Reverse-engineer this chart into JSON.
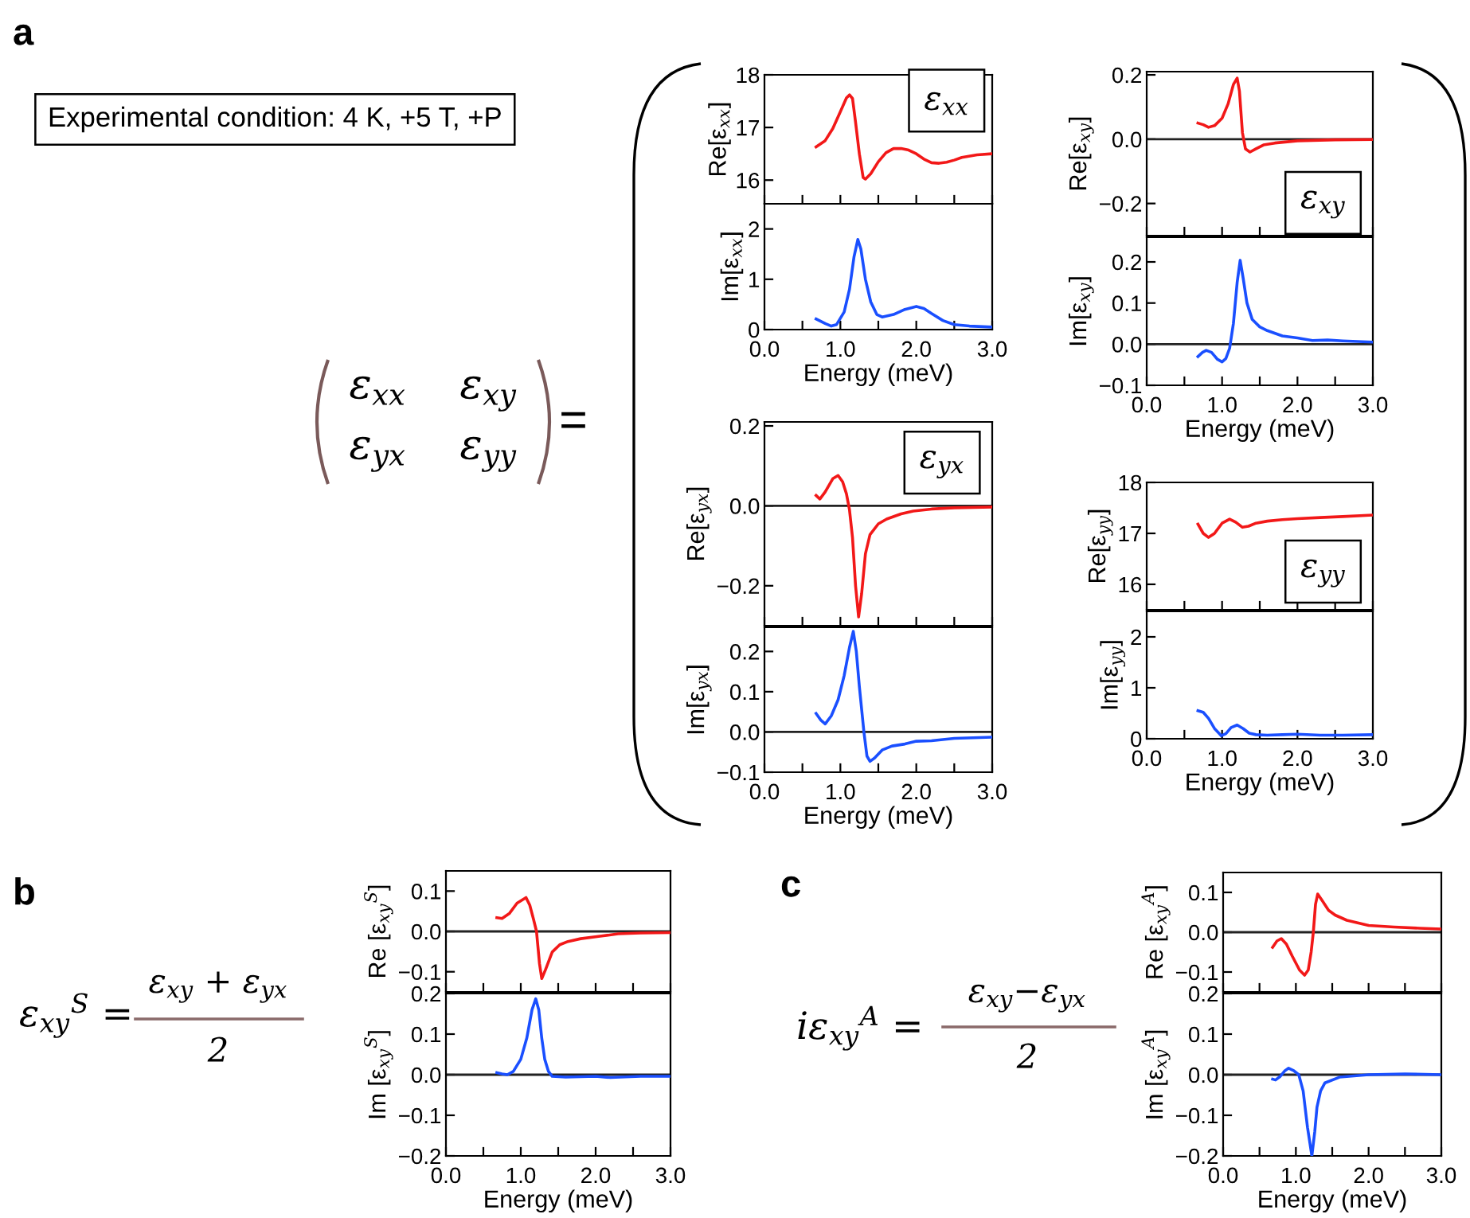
{
  "chart_data": [
    {
      "type": "line",
      "ylabel": "Re[ε$_{xx}$]",
      "xlim": [
        0,
        3
      ],
      "ylim": [
        15.55,
        18
      ],
      "yticks": [
        16,
        17,
        18
      ],
      "tick_labels": "y",
      "xticks": [
        {
          "value": 0,
          "label": null
        },
        {
          "value": 0.5,
          "label": null
        },
        {
          "value": 1,
          "label": null
        },
        {
          "value": 1.5,
          "label": null
        },
        {
          "value": 2,
          "label": null
        },
        {
          "value": 2.5,
          "label": null
        },
        {
          "value": 3,
          "label": null
        }
      ],
      "annotations": [
        "a",
        "Experimental condition: 4 K, +5 T, +P",
        "ε$_{xx}$    ε$_{xy}$",
        "ε$_{yx}$    ε$_{yy}$",
        "=",
        "ε$_{xx}$"
      ],
      "series": [
        {
          "color": "#f21818",
          "x": [
            0.68,
            0.8,
            0.9,
            1.0,
            1.08,
            1.12,
            1.16,
            1.2,
            1.25,
            1.3,
            1.33,
            1.4,
            1.5,
            1.6,
            1.7,
            1.8,
            1.9,
            2.0,
            2.1,
            2.2,
            2.3,
            2.4,
            2.5,
            2.6,
            2.8,
            3.0
          ],
          "values": [
            16.63,
            16.75,
            16.98,
            17.3,
            17.56,
            17.62,
            17.55,
            17.1,
            16.5,
            16.05,
            16.02,
            16.12,
            16.35,
            16.52,
            16.6,
            16.6,
            16.57,
            16.5,
            16.4,
            16.33,
            16.32,
            16.34,
            16.38,
            16.43,
            16.48,
            16.5
          ]
        }
      ]
    },
    {
      "type": "line",
      "ylabel": "Im[ε$_{xx}$]",
      "xlabel": "Energy (meV)",
      "xlim": [
        0,
        3
      ],
      "ylim": [
        0,
        2.5
      ],
      "yticks": [
        0,
        1,
        2
      ],
      "xticks": [
        {
          "value": 0,
          "label": "0.0"
        },
        {
          "value": 0.5,
          "label": null
        },
        {
          "value": 1,
          "label": "1.0"
        },
        {
          "value": 1.5,
          "label": null
        },
        {
          "value": 2,
          "label": "2.0"
        },
        {
          "value": 2.5,
          "label": null
        },
        {
          "value": 3,
          "label": "3.0"
        }
      ],
      "series": [
        {
          "color": "#1a4fff",
          "x": [
            0.68,
            0.8,
            0.88,
            0.95,
            1.05,
            1.12,
            1.18,
            1.23,
            1.27,
            1.33,
            1.4,
            1.48,
            1.55,
            1.7,
            1.85,
            2.0,
            2.1,
            2.2,
            2.35,
            2.5,
            2.7,
            3.0
          ],
          "values": [
            0.21,
            0.12,
            0.07,
            0.1,
            0.35,
            0.8,
            1.45,
            1.79,
            1.6,
            1.0,
            0.55,
            0.3,
            0.25,
            0.3,
            0.4,
            0.46,
            0.42,
            0.32,
            0.18,
            0.1,
            0.07,
            0.05
          ]
        }
      ]
    },
    {
      "type": "line",
      "ylabel": "Re[ε$_{xy}$]",
      "xlim": [
        0,
        3
      ],
      "ylim": [
        -0.3,
        0.21
      ],
      "yticks": [
        {
          "value": -0.2,
          "label": "−0.2"
        },
        {
          "value": 0,
          "label": "0.0"
        },
        0.2
      ],
      "tick_labels": "y",
      "xticks": [
        {
          "value": 0,
          "label": null
        },
        {
          "value": 0.5,
          "label": null
        },
        {
          "value": 1,
          "label": null
        },
        {
          "value": 1.5,
          "label": null
        },
        {
          "value": 2,
          "label": null
        },
        {
          "value": 2.5,
          "label": null
        },
        {
          "value": 3,
          "label": null
        }
      ],
      "ref_lines": [
        {
          "axis": "y",
          "value": 0
        }
      ],
      "annotations": [
        "ε$_{xy}$"
      ],
      "series": [
        {
          "color": "#f21818",
          "x": [
            0.68,
            0.75,
            0.82,
            0.9,
            1.0,
            1.08,
            1.15,
            1.2,
            1.23,
            1.27,
            1.31,
            1.37,
            1.45,
            1.55,
            1.7,
            2.0,
            2.5,
            3.0
          ],
          "values": [
            0.05,
            0.045,
            0.037,
            0.042,
            0.065,
            0.11,
            0.17,
            0.19,
            0.15,
            0.02,
            -0.03,
            -0.04,
            -0.03,
            -0.018,
            -0.012,
            -0.005,
            -0.002,
            -0.001
          ]
        }
      ]
    },
    {
      "type": "line",
      "ylabel": "Im[ε$_{xy}$]",
      "xlabel": "Energy (meV)",
      "xlim": [
        0,
        3
      ],
      "ylim": [
        -0.1,
        0.26
      ],
      "yticks": [
        {
          "value": -0.1,
          "label": "−0.1"
        },
        {
          "value": 0,
          "label": "0.0"
        },
        0.1,
        0.2
      ],
      "xticks": [
        {
          "value": 0,
          "label": "0.0"
        },
        {
          "value": 0.5,
          "label": null
        },
        {
          "value": 1,
          "label": "1.0"
        },
        {
          "value": 1.5,
          "label": null
        },
        {
          "value": 2,
          "label": "2.0"
        },
        {
          "value": 2.5,
          "label": null
        },
        {
          "value": 3,
          "label": "3.0"
        }
      ],
      "ref_lines": [
        {
          "axis": "y",
          "value": 0
        }
      ],
      "series": [
        {
          "color": "#1a4fff",
          "x": [
            0.68,
            0.74,
            0.79,
            0.86,
            0.94,
            1.0,
            1.05,
            1.1,
            1.15,
            1.2,
            1.24,
            1.28,
            1.33,
            1.4,
            1.5,
            1.6,
            1.8,
            2.0,
            2.2,
            2.4,
            2.6,
            3.0
          ],
          "values": [
            -0.03,
            -0.02,
            -0.015,
            -0.02,
            -0.037,
            -0.043,
            -0.035,
            -0.01,
            0.05,
            0.15,
            0.204,
            0.16,
            0.1,
            0.06,
            0.042,
            0.033,
            0.02,
            0.015,
            0.009,
            0.01,
            0.008,
            0.005
          ]
        }
      ]
    },
    {
      "type": "line",
      "ylabel": "Re[ε$_{yx}$]",
      "xlim": [
        0,
        3
      ],
      "ylim": [
        -0.3,
        0.21
      ],
      "yticks": [
        {
          "value": -0.2,
          "label": "−0.2"
        },
        {
          "value": 0,
          "label": "0.0"
        },
        0.2
      ],
      "tick_labels": "y",
      "xticks": [
        {
          "value": 0,
          "label": null
        },
        {
          "value": 0.5,
          "label": null
        },
        {
          "value": 1,
          "label": null
        },
        {
          "value": 1.5,
          "label": null
        },
        {
          "value": 2,
          "label": null
        },
        {
          "value": 2.5,
          "label": null
        },
        {
          "value": 3,
          "label": null
        }
      ],
      "ref_lines": [
        {
          "axis": "y",
          "value": 0
        }
      ],
      "annotations": [
        "ε$_{yx}$"
      ],
      "series": [
        {
          "color": "#f21818",
          "x": [
            0.68,
            0.73,
            0.8,
            0.9,
            0.97,
            1.03,
            1.08,
            1.12,
            1.16,
            1.2,
            1.24,
            1.28,
            1.33,
            1.39,
            1.5,
            1.61,
            1.8,
            1.96,
            2.2,
            2.5,
            3.0
          ],
          "values": [
            0.026,
            0.017,
            0.035,
            0.068,
            0.076,
            0.06,
            0.03,
            -0.01,
            -0.08,
            -0.2,
            -0.278,
            -0.22,
            -0.12,
            -0.072,
            -0.045,
            -0.033,
            -0.02,
            -0.013,
            -0.008,
            -0.005,
            -0.003
          ]
        }
      ]
    },
    {
      "type": "line",
      "ylabel": "Im[ε$_{yx}$]",
      "xlabel": "Energy (meV)",
      "xlim": [
        0,
        3
      ],
      "ylim": [
        -0.1,
        0.26
      ],
      "yticks": [
        {
          "value": -0.1,
          "label": "−0.1"
        },
        {
          "value": 0,
          "label": "0.0"
        },
        0.1,
        0.2
      ],
      "xticks": [
        {
          "value": 0,
          "label": "0.0"
        },
        {
          "value": 0.5,
          "label": null
        },
        {
          "value": 1,
          "label": "1.0"
        },
        {
          "value": 1.5,
          "label": null
        },
        {
          "value": 2,
          "label": "2.0"
        },
        {
          "value": 2.5,
          "label": null
        },
        {
          "value": 3,
          "label": "3.0"
        }
      ],
      "ref_lines": [
        {
          "axis": "y",
          "value": 0
        }
      ],
      "series": [
        {
          "color": "#1a4fff",
          "x": [
            0.68,
            0.74,
            0.8,
            0.88,
            0.97,
            1.05,
            1.12,
            1.17,
            1.21,
            1.25,
            1.31,
            1.35,
            1.39,
            1.45,
            1.55,
            1.68,
            1.85,
            2.0,
            2.2,
            2.5,
            3.0
          ],
          "values": [
            0.046,
            0.03,
            0.02,
            0.04,
            0.08,
            0.14,
            0.21,
            0.25,
            0.2,
            0.113,
            0.0,
            -0.06,
            -0.073,
            -0.065,
            -0.045,
            -0.035,
            -0.03,
            -0.023,
            -0.022,
            -0.016,
            -0.013
          ]
        }
      ]
    },
    {
      "type": "line",
      "ylabel": "Re[ε$_{yy}$]",
      "xlim": [
        0,
        3
      ],
      "ylim": [
        15.5,
        18
      ],
      "yticks": [
        16,
        17,
        18
      ],
      "tick_labels": "y",
      "xticks": [
        {
          "value": 0,
          "label": null
        },
        {
          "value": 0.5,
          "label": null
        },
        {
          "value": 1,
          "label": null
        },
        {
          "value": 1.5,
          "label": null
        },
        {
          "value": 2,
          "label": null
        },
        {
          "value": 2.5,
          "label": null
        },
        {
          "value": 3,
          "label": null
        }
      ],
      "annotations": [
        "ε$_{yy}$"
      ],
      "series": [
        {
          "color": "#f21818",
          "x": [
            0.68,
            0.75,
            0.82,
            0.9,
            1.0,
            1.1,
            1.18,
            1.27,
            1.35,
            1.45,
            1.6,
            1.8,
            2.0,
            2.3,
            2.6,
            3.0
          ],
          "values": [
            17.18,
            17.0,
            16.92,
            17.0,
            17.2,
            17.28,
            17.22,
            17.12,
            17.14,
            17.2,
            17.24,
            17.27,
            17.29,
            17.31,
            17.33,
            17.36
          ]
        }
      ]
    },
    {
      "type": "line",
      "ylabel": "Im[ε$_{yy}$]",
      "xlabel": "Energy (meV)",
      "xlim": [
        0,
        3
      ],
      "ylim": [
        0,
        2.5
      ],
      "yticks": [
        0,
        1,
        2
      ],
      "xticks": [
        {
          "value": 0,
          "label": "0.0"
        },
        {
          "value": 0.5,
          "label": null
        },
        {
          "value": 1,
          "label": "1.0"
        },
        {
          "value": 1.5,
          "label": null
        },
        {
          "value": 2,
          "label": "2.0"
        },
        {
          "value": 2.5,
          "label": null
        },
        {
          "value": 3,
          "label": "3.0"
        }
      ],
      "series": [
        {
          "color": "#1a4fff",
          "x": [
            0.68,
            0.75,
            0.82,
            0.9,
            0.99,
            1.05,
            1.12,
            1.2,
            1.28,
            1.36,
            1.45,
            1.6,
            1.8,
            2.0,
            2.3,
            2.6,
            3.0
          ],
          "values": [
            0.55,
            0.52,
            0.4,
            0.2,
            0.06,
            0.1,
            0.22,
            0.27,
            0.2,
            0.11,
            0.08,
            0.07,
            0.08,
            0.09,
            0.07,
            0.07,
            0.08
          ]
        }
      ]
    },
    {
      "type": "line",
      "ylabel": "Re [ε$_{xy}$$^{S}$]",
      "xlim": [
        0,
        3
      ],
      "ylim": [
        -0.15,
        0.15
      ],
      "yticks": [
        {
          "value": -0.1,
          "label": "−0.1"
        },
        {
          "value": 0,
          "label": "0.0"
        },
        0.1
      ],
      "tick_labels": "y",
      "xticks": [
        {
          "value": 0,
          "label": null
        },
        {
          "value": 0.5,
          "label": null
        },
        {
          "value": 1,
          "label": null
        },
        {
          "value": 1.5,
          "label": null
        },
        {
          "value": 2,
          "label": null
        },
        {
          "value": 2.5,
          "label": null
        },
        {
          "value": 3,
          "label": null
        }
      ],
      "ref_lines": [
        {
          "axis": "y",
          "value": 0
        }
      ],
      "annotations": [
        "b",
        "ε$_{xy}$$^{S}$ =",
        "ε$_{xy}$ + ε$_{yx}$",
        "2"
      ],
      "series": [
        {
          "color": "#f21818",
          "x": [
            0.68,
            0.75,
            0.85,
            0.95,
            1.07,
            1.12,
            1.17,
            1.21,
            1.25,
            1.28,
            1.33,
            1.42,
            1.52,
            1.63,
            1.8,
            2.06,
            2.3,
            2.6,
            3.0
          ],
          "values": [
            0.034,
            0.032,
            0.045,
            0.07,
            0.084,
            0.065,
            0.03,
            0.0,
            -0.08,
            -0.117,
            -0.095,
            -0.051,
            -0.033,
            -0.025,
            -0.018,
            -0.012,
            -0.006,
            -0.004,
            -0.003
          ]
        }
      ]
    },
    {
      "type": "line",
      "ylabel": "Im [ε$_{xy}$$^{S}$]",
      "xlabel": "Energy (meV)",
      "xlim": [
        0,
        3
      ],
      "ylim": [
        -0.2,
        0.2
      ],
      "yticks": [
        {
          "value": -0.2,
          "label": "−0.2"
        },
        {
          "value": -0.1,
          "label": "−0.1"
        },
        {
          "value": 0,
          "label": "0.0"
        },
        0.1,
        0.2
      ],
      "xticks": [
        {
          "value": 0,
          "label": "0.0"
        },
        {
          "value": 0.5,
          "label": null
        },
        {
          "value": 1,
          "label": "1.0"
        },
        {
          "value": 1.5,
          "label": null
        },
        {
          "value": 2,
          "label": "2.0"
        },
        {
          "value": 2.5,
          "label": null
        },
        {
          "value": 3,
          "label": "3.0"
        }
      ],
      "ref_lines": [
        {
          "axis": "y",
          "value": 0
        }
      ],
      "series": [
        {
          "color": "#1a4fff",
          "x": [
            0.68,
            0.75,
            0.82,
            0.9,
            1.0,
            1.08,
            1.15,
            1.2,
            1.24,
            1.28,
            1.32,
            1.37,
            1.42,
            1.6,
            2.0,
            2.2,
            2.6,
            3.0
          ],
          "values": [
            0.005,
            0.002,
            0.0,
            0.008,
            0.038,
            0.09,
            0.16,
            0.187,
            0.16,
            0.09,
            0.038,
            0.008,
            -0.004,
            -0.006,
            -0.004,
            -0.007,
            -0.004,
            -0.004
          ]
        }
      ]
    },
    {
      "type": "line",
      "ylabel": "Re [ε$_{xy}$$^{A}$]",
      "xlim": [
        0,
        3
      ],
      "ylim": [
        -0.15,
        0.15
      ],
      "yticks": [
        {
          "value": -0.1,
          "label": "−0.1"
        },
        {
          "value": 0,
          "label": "0.0"
        },
        0.1
      ],
      "tick_labels": "y",
      "xticks": [
        {
          "value": 0,
          "label": null
        },
        {
          "value": 0.5,
          "label": null
        },
        {
          "value": 1,
          "label": null
        },
        {
          "value": 1.5,
          "label": null
        },
        {
          "value": 2,
          "label": null
        },
        {
          "value": 2.5,
          "label": null
        },
        {
          "value": 3,
          "label": null
        }
      ],
      "ref_lines": [
        {
          "axis": "y",
          "value": 0
        }
      ],
      "annotations": [
        "c",
        "iε$_{xy}$$^{A}$ =",
        "ε$_{xy}$−ε$_{yx}$",
        "2"
      ],
      "series": [
        {
          "color": "#f21818",
          "x": [
            0.68,
            0.74,
            0.8,
            0.87,
            0.95,
            1.05,
            1.12,
            1.17,
            1.21,
            1.24,
            1.27,
            1.3,
            1.36,
            1.45,
            1.54,
            1.7,
            2.0,
            2.35,
            2.7,
            3.0
          ],
          "values": [
            -0.038,
            -0.022,
            -0.016,
            -0.03,
            -0.06,
            -0.095,
            -0.108,
            -0.095,
            -0.05,
            0.0,
            0.07,
            0.096,
            0.08,
            0.055,
            0.043,
            0.03,
            0.017,
            0.013,
            0.01,
            0.008
          ]
        }
      ]
    },
    {
      "type": "line",
      "ylabel": "Im [ε$_{xy}$$^{A}$]",
      "xlabel": "Energy (meV)",
      "xlim": [
        0,
        3
      ],
      "ylim": [
        -0.2,
        0.2
      ],
      "yticks": [
        {
          "value": -0.2,
          "label": "−0.2"
        },
        {
          "value": -0.1,
          "label": "−0.1"
        },
        {
          "value": 0,
          "label": "0.0"
        },
        0.1,
        0.2
      ],
      "xticks": [
        {
          "value": 0,
          "label": "0.0"
        },
        {
          "value": 0.5,
          "label": null
        },
        {
          "value": 1,
          "label": "1.0"
        },
        {
          "value": 1.5,
          "label": null
        },
        {
          "value": 2,
          "label": "2.0"
        },
        {
          "value": 2.5,
          "label": null
        },
        {
          "value": 3,
          "label": "3.0"
        }
      ],
      "ref_lines": [
        {
          "axis": "y",
          "value": 0
        }
      ],
      "series": [
        {
          "color": "#1a4fff",
          "x": [
            0.68,
            0.72,
            0.78,
            0.85,
            0.9,
            0.97,
            1.04,
            1.1,
            1.16,
            1.22,
            1.26,
            1.29,
            1.34,
            1.4,
            1.6,
            2.0,
            2.5,
            3.0
          ],
          "values": [
            -0.011,
            -0.013,
            -0.005,
            0.01,
            0.016,
            0.01,
            0.0,
            -0.04,
            -0.13,
            -0.2,
            -0.14,
            -0.08,
            -0.04,
            -0.02,
            -0.006,
            0.0,
            0.002,
            0.0
          ]
        }
      ]
    }
  ]
}
